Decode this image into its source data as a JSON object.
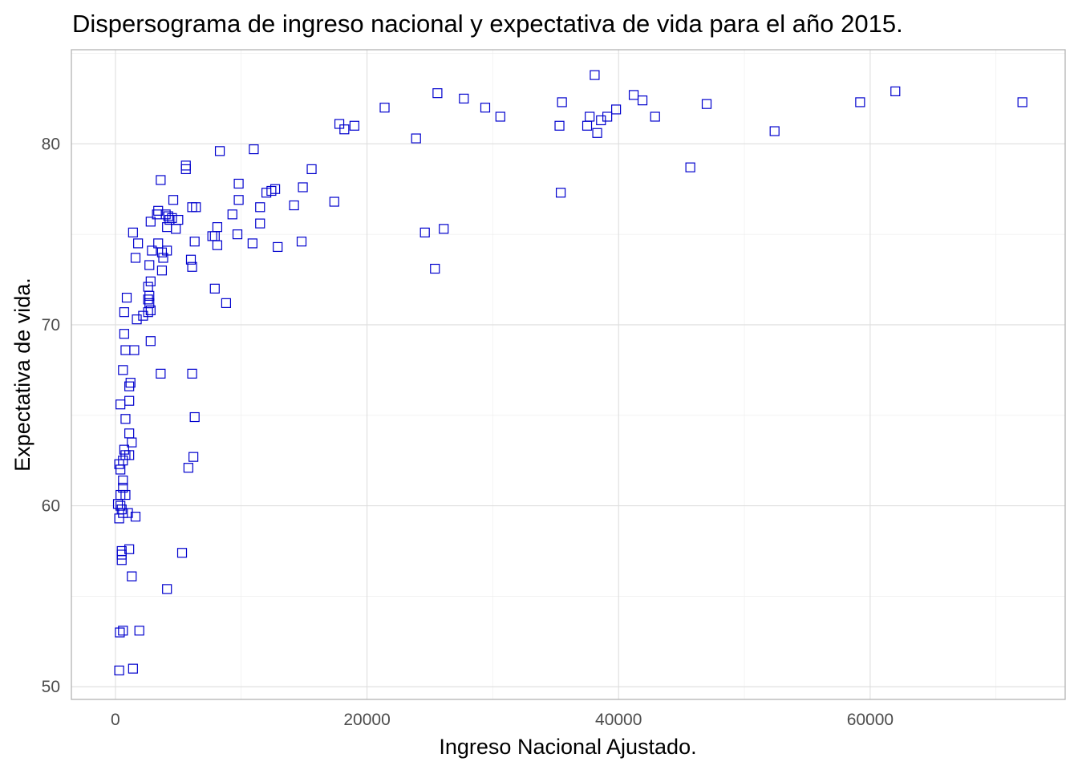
{
  "chart_data": {
    "type": "scatter",
    "title": "Dispersograma de ingreso nacional y expectativa de vida para el año 2015.",
    "xlabel": "Ingreso Nacional Ajustado.",
    "ylabel": "Expectativa de vida.",
    "xlim": [
      -3500,
      75500
    ],
    "ylim": [
      49.3,
      85.2
    ],
    "x_ticks": [
      0,
      20000,
      40000,
      60000
    ],
    "x_tick_labels": [
      "0",
      "20000",
      "40000",
      "60000"
    ],
    "y_ticks": [
      50,
      60,
      70,
      80
    ],
    "y_tick_labels": [
      "50",
      "60",
      "70",
      "80"
    ],
    "grid": true,
    "marker": "open-square",
    "point_color": "#0000cd",
    "points": [
      [
        300,
        50.9
      ],
      [
        350,
        53.0
      ],
      [
        600,
        53.1
      ],
      [
        1400,
        51.0
      ],
      [
        1900,
        53.1
      ],
      [
        4100,
        55.4
      ],
      [
        1300,
        56.1
      ],
      [
        1100,
        57.6
      ],
      [
        500,
        57.0
      ],
      [
        500,
        57.3
      ],
      [
        500,
        57.5
      ],
      [
        5300,
        57.4
      ],
      [
        300,
        59.3
      ],
      [
        1600,
        59.4
      ],
      [
        600,
        59.6
      ],
      [
        1000,
        59.6
      ],
      [
        500,
        59.8
      ],
      [
        200,
        60.1
      ],
      [
        400,
        60.0
      ],
      [
        400,
        60.6
      ],
      [
        800,
        60.6
      ],
      [
        600,
        61.0
      ],
      [
        600,
        61.4
      ],
      [
        5800,
        62.1
      ],
      [
        400,
        62.0
      ],
      [
        300,
        62.3
      ],
      [
        600,
        62.5
      ],
      [
        1100,
        62.8
      ],
      [
        6200,
        62.7
      ],
      [
        800,
        62.8
      ],
      [
        700,
        63.1
      ],
      [
        1300,
        63.5
      ],
      [
        1100,
        64.0
      ],
      [
        800,
        64.8
      ],
      [
        6300,
        64.9
      ],
      [
        400,
        65.6
      ],
      [
        1100,
        65.8
      ],
      [
        1100,
        66.6
      ],
      [
        1200,
        66.8
      ],
      [
        600,
        67.5
      ],
      [
        3600,
        67.3
      ],
      [
        6100,
        67.3
      ],
      [
        800,
        68.6
      ],
      [
        1500,
        68.6
      ],
      [
        2800,
        69.1
      ],
      [
        700,
        69.5
      ],
      [
        700,
        70.7
      ],
      [
        1700,
        70.3
      ],
      [
        2200,
        70.5
      ],
      [
        2600,
        70.7
      ],
      [
        2800,
        70.8
      ],
      [
        2700,
        71.2
      ],
      [
        900,
        71.5
      ],
      [
        2600,
        71.4
      ],
      [
        2700,
        71.6
      ],
      [
        8800,
        71.2
      ],
      [
        2600,
        72.1
      ],
      [
        2800,
        72.4
      ],
      [
        7900,
        72.0
      ],
      [
        2700,
        73.3
      ],
      [
        3700,
        73.0
      ],
      [
        6100,
        73.2
      ],
      [
        1600,
        73.7
      ],
      [
        3800,
        73.7
      ],
      [
        6000,
        73.6
      ],
      [
        2900,
        74.1
      ],
      [
        3400,
        74.5
      ],
      [
        3700,
        74.0
      ],
      [
        4100,
        74.1
      ],
      [
        1800,
        74.5
      ],
      [
        6300,
        74.6
      ],
      [
        8100,
        74.4
      ],
      [
        10900,
        74.5
      ],
      [
        12900,
        74.3
      ],
      [
        14800,
        74.6
      ],
      [
        1400,
        75.1
      ],
      [
        2800,
        75.7
      ],
      [
        4100,
        75.4
      ],
      [
        4800,
        75.3
      ],
      [
        4500,
        75.9
      ],
      [
        5000,
        75.8
      ],
      [
        7700,
        74.9
      ],
      [
        7900,
        74.9
      ],
      [
        8100,
        75.4
      ],
      [
        9700,
        75.0
      ],
      [
        11500,
        75.6
      ],
      [
        24600,
        75.1
      ],
      [
        26100,
        75.3
      ],
      [
        3300,
        76.1
      ],
      [
        3400,
        76.3
      ],
      [
        4000,
        76.1
      ],
      [
        4200,
        76.0
      ],
      [
        4300,
        75.8
      ],
      [
        4600,
        76.9
      ],
      [
        6100,
        76.5
      ],
      [
        6400,
        76.5
      ],
      [
        9300,
        76.1
      ],
      [
        9800,
        76.9
      ],
      [
        11500,
        76.5
      ],
      [
        14200,
        76.6
      ],
      [
        17400,
        76.8
      ],
      [
        3600,
        78.0
      ],
      [
        5600,
        78.6
      ],
      [
        5600,
        78.8
      ],
      [
        9800,
        77.8
      ],
      [
        12000,
        77.3
      ],
      [
        12400,
        77.4
      ],
      [
        12700,
        77.5
      ],
      [
        14900,
        77.6
      ],
      [
        15600,
        78.6
      ],
      [
        8300,
        79.6
      ],
      [
        11000,
        79.7
      ],
      [
        25400,
        73.1
      ],
      [
        35400,
        77.3
      ],
      [
        45700,
        78.7
      ],
      [
        17800,
        81.1
      ],
      [
        18200,
        80.8
      ],
      [
        19000,
        81.0
      ],
      [
        21400,
        82.0
      ],
      [
        23900,
        80.3
      ],
      [
        25600,
        82.8
      ],
      [
        27700,
        82.5
      ],
      [
        29400,
        82.0
      ],
      [
        30600,
        81.5
      ],
      [
        35300,
        81.0
      ],
      [
        35500,
        82.3
      ],
      [
        37500,
        81.0
      ],
      [
        37700,
        81.5
      ],
      [
        38300,
        80.6
      ],
      [
        38600,
        81.3
      ],
      [
        39100,
        81.5
      ],
      [
        39800,
        81.9
      ],
      [
        41200,
        82.7
      ],
      [
        41900,
        82.4
      ],
      [
        42900,
        81.5
      ],
      [
        38100,
        83.8
      ],
      [
        47000,
        82.2
      ],
      [
        52400,
        80.7
      ],
      [
        59200,
        82.3
      ],
      [
        62000,
        82.9
      ],
      [
        72100,
        82.3
      ]
    ]
  }
}
